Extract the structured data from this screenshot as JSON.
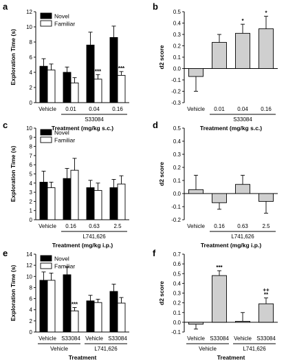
{
  "chart_data": [
    {
      "panel": "a",
      "type": "bar",
      "ylabel": "Exploration Time (s)",
      "xlabel": "Treatment (mg/kg s.c.)",
      "ylim": [
        0,
        12
      ],
      "yticks": [
        0,
        2,
        4,
        6,
        8,
        10,
        12
      ],
      "categories": [
        "Vehicle",
        "0.01",
        "0.04",
        "0.16"
      ],
      "group_labels": [
        {
          "label": "S33084",
          "from": 1,
          "to": 3
        }
      ],
      "legend": {
        "position": "top-left",
        "entries": [
          "Novel",
          "Familiar"
        ]
      },
      "series": [
        {
          "name": "Novel",
          "color": "#000000",
          "values": [
            4.8,
            4.0,
            7.6,
            8.6
          ],
          "errors": [
            1.0,
            0.7,
            1.7,
            1.5
          ]
        },
        {
          "name": "Familiar",
          "color": "#ffffff",
          "values": [
            4.3,
            2.6,
            3.1,
            3.6
          ],
          "errors": [
            0.8,
            0.7,
            0.6,
            0.5
          ]
        }
      ],
      "annotations": [
        {
          "series": 1,
          "index": 2,
          "text": "***"
        },
        {
          "series": 1,
          "index": 3,
          "text": "***"
        }
      ]
    },
    {
      "panel": "b",
      "type": "bar",
      "ylabel": "d2 score",
      "xlabel": "Treatment (mg/kg s.c.)",
      "ylim": [
        -0.3,
        0.5
      ],
      "yticks": [
        -0.3,
        -0.2,
        -0.1,
        0.0,
        0.1,
        0.2,
        0.3,
        0.4,
        0.5
      ],
      "tick_labels": [
        "-0.3",
        "-0.2",
        "-0.1",
        "0.0",
        "0.1",
        "0.2",
        "0.3",
        "0.4",
        "0.5"
      ],
      "categories": [
        "Vehicle",
        "0.01",
        "0.04",
        "0.16"
      ],
      "group_labels": [
        {
          "label": "S33084",
          "from": 1,
          "to": 3
        }
      ],
      "series": [
        {
          "color": "#cfcfcf",
          "values": [
            -0.07,
            0.23,
            0.31,
            0.35
          ],
          "errors": [
            0.13,
            0.07,
            0.08,
            0.11
          ]
        }
      ],
      "annotations": [
        {
          "series": 0,
          "index": 2,
          "text": "*"
        },
        {
          "series": 0,
          "index": 3,
          "text": "*"
        }
      ]
    },
    {
      "panel": "c",
      "type": "bar",
      "ylabel": "Exploration Time (s)",
      "xlabel": "Treatment (mg/kg i.p.)",
      "ylim": [
        0,
        10
      ],
      "yticks": [
        0,
        1,
        2,
        3,
        4,
        5,
        6,
        7,
        8,
        9,
        10
      ],
      "categories": [
        "Vehicle",
        "0.16",
        "0.63",
        "2.5"
      ],
      "group_labels": [
        {
          "label": "L741,626",
          "from": 1,
          "to": 3
        }
      ],
      "legend": {
        "position": "top-left",
        "entries": [
          "Novel",
          "Familiar"
        ]
      },
      "series": [
        {
          "name": "Novel",
          "color": "#000000",
          "values": [
            4.1,
            4.5,
            3.5,
            3.5
          ],
          "errors": [
            1.2,
            1.1,
            0.8,
            0.9
          ]
        },
        {
          "name": "Familiar",
          "color": "#ffffff",
          "values": [
            3.5,
            5.4,
            3.2,
            3.9
          ],
          "errors": [
            0.6,
            1.3,
            0.8,
            0.9
          ]
        }
      ],
      "annotations": []
    },
    {
      "panel": "d",
      "type": "bar",
      "ylabel": "d2 score",
      "xlabel": "Treatment (mg/kg i.p.)",
      "ylim": [
        -0.2,
        0.5
      ],
      "yticks": [
        -0.2,
        -0.1,
        0.0,
        0.1,
        0.2,
        0.3,
        0.4,
        0.5
      ],
      "tick_labels": [
        "-0.2",
        "-0.1",
        "0.0",
        "0.1",
        "0.2",
        "0.3",
        "0.4",
        "0.5"
      ],
      "categories": [
        "Vehicle",
        "0.16",
        "0.63",
        "2.5"
      ],
      "group_labels": [
        {
          "label": "L741,626",
          "from": 1,
          "to": 3
        }
      ],
      "series": [
        {
          "color": "#cfcfcf",
          "values": [
            0.03,
            -0.07,
            0.07,
            -0.06
          ],
          "errors": [
            0.11,
            0.05,
            0.07,
            0.09
          ]
        }
      ],
      "annotations": []
    },
    {
      "panel": "e",
      "type": "bar",
      "ylabel": "Exploration Time (s)",
      "xlabel": "Treatment",
      "ylim": [
        0,
        14
      ],
      "yticks": [
        0,
        2,
        4,
        6,
        8,
        10,
        12,
        14
      ],
      "categories": [
        "Vehicle",
        "S33084",
        "Vehicle",
        "S33084"
      ],
      "group_labels": [
        {
          "label": "Vehicle",
          "from": 0,
          "to": 1
        },
        {
          "label": "L741,626",
          "from": 2,
          "to": 3
        }
      ],
      "legend": {
        "position": "top-left",
        "entries": [
          "Novel",
          "Familiar"
        ]
      },
      "series": [
        {
          "name": "Novel",
          "color": "#000000",
          "values": [
            9.3,
            10.3,
            5.6,
            7.3
          ],
          "errors": [
            1.5,
            1.4,
            1.0,
            1.3
          ]
        },
        {
          "name": "Familiar",
          "color": "#ffffff",
          "values": [
            9.3,
            3.8,
            5.3,
            5.2
          ],
          "errors": [
            1.3,
            0.6,
            0.6,
            1.0
          ]
        }
      ],
      "annotations": [
        {
          "series": 1,
          "index": 1,
          "text": "***"
        }
      ]
    },
    {
      "panel": "f",
      "type": "bar",
      "ylabel": "d2 score",
      "xlabel": "Treatment",
      "ylim": [
        -0.1,
        0.7
      ],
      "yticks": [
        -0.1,
        0.0,
        0.1,
        0.2,
        0.3,
        0.4,
        0.5,
        0.6,
        0.7
      ],
      "tick_labels": [
        "-0.1",
        "0.0",
        "0.1",
        "0.2",
        "0.3",
        "0.4",
        "0.5",
        "0.6",
        "0.7"
      ],
      "categories": [
        "Vehicle",
        "S33084",
        "Vehicle",
        "S33084"
      ],
      "group_labels": [
        {
          "label": "Vehicle",
          "from": 0,
          "to": 1
        },
        {
          "label": "L741,626",
          "from": 2,
          "to": 3
        }
      ],
      "series": [
        {
          "color": "#cfcfcf",
          "values": [
            -0.02,
            0.48,
            0.01,
            0.19
          ],
          "errors": [
            0.05,
            0.05,
            0.09,
            0.06
          ]
        }
      ],
      "annotations": [
        {
          "series": 0,
          "index": 1,
          "text": "***"
        },
        {
          "series": 0,
          "index": 3,
          "text": "**",
          "text2": "++"
        }
      ]
    }
  ]
}
